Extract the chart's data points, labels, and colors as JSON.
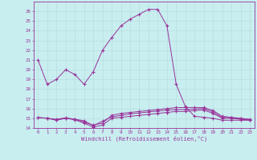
{
  "xlabel": "Windchill (Refroidissement éolien,°C)",
  "bg_color": "#c8eef0",
  "line_color": "#993399",
  "grid_color": "#b8dde0",
  "ylim": [
    14,
    27
  ],
  "xlim": [
    -0.5,
    23.5
  ],
  "yticks": [
    14,
    15,
    16,
    17,
    18,
    19,
    20,
    21,
    22,
    23,
    24,
    25,
    26
  ],
  "xticks": [
    0,
    1,
    2,
    3,
    4,
    5,
    6,
    7,
    8,
    9,
    10,
    11,
    12,
    13,
    14,
    15,
    16,
    17,
    18,
    19,
    20,
    21,
    22,
    23
  ],
  "line1_x": [
    0,
    1,
    2,
    3,
    4,
    5,
    6,
    7,
    8,
    9,
    10,
    11,
    12,
    13,
    14,
    15,
    16,
    17,
    18,
    19,
    20,
    21,
    22,
    23
  ],
  "line1_y": [
    21.0,
    18.5,
    19.0,
    20.0,
    19.5,
    18.5,
    19.8,
    22.0,
    23.3,
    24.5,
    25.2,
    25.7,
    26.2,
    26.2,
    24.5,
    18.5,
    16.2,
    15.2,
    15.1,
    15.0,
    14.8,
    14.8,
    14.8,
    14.8
  ],
  "line2_x": [
    0,
    1,
    2,
    3,
    4,
    5,
    6,
    7,
    8,
    9,
    10,
    11,
    12,
    13,
    14,
    15,
    16,
    17,
    18,
    19,
    20,
    21,
    22,
    23
  ],
  "line2_y": [
    15.1,
    15.0,
    14.8,
    15.0,
    14.9,
    14.6,
    14.3,
    14.5,
    15.3,
    15.5,
    15.6,
    15.7,
    15.8,
    15.9,
    16.0,
    16.1,
    16.1,
    16.1,
    16.1,
    15.8,
    15.2,
    15.1,
    15.0,
    14.9
  ],
  "line3_x": [
    1,
    2,
    3,
    4,
    5,
    6,
    7,
    8,
    9,
    10,
    11,
    12,
    13,
    14,
    15,
    16,
    17,
    18,
    19,
    20,
    21,
    22,
    23
  ],
  "line3_y": [
    15.0,
    14.85,
    15.0,
    14.85,
    14.5,
    14.1,
    14.3,
    15.0,
    15.1,
    15.2,
    15.3,
    15.4,
    15.5,
    15.6,
    15.7,
    15.7,
    15.8,
    15.85,
    15.5,
    15.0,
    15.0,
    14.9,
    14.8
  ],
  "line4_x": [
    0,
    1,
    2,
    3,
    4,
    5,
    6,
    7,
    8,
    9,
    10,
    11,
    12,
    13,
    14,
    15,
    16,
    17,
    18,
    19,
    20,
    21,
    22,
    23
  ],
  "line4_y": [
    15.05,
    15.0,
    14.9,
    15.05,
    14.9,
    14.75,
    14.25,
    14.7,
    15.15,
    15.3,
    15.45,
    15.55,
    15.65,
    15.75,
    15.85,
    15.9,
    15.9,
    15.95,
    16.0,
    15.65,
    15.1,
    15.05,
    14.95,
    14.85
  ]
}
